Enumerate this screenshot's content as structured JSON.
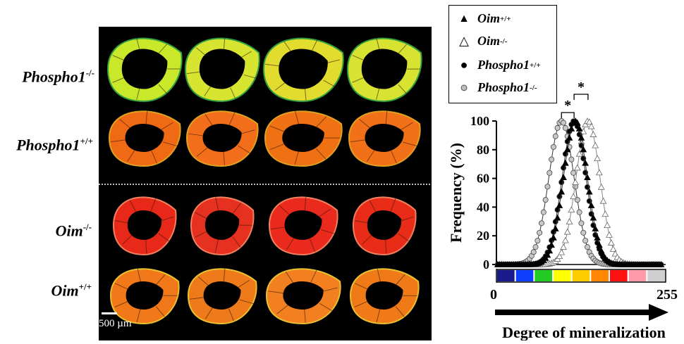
{
  "panel": {
    "row_labels": [
      {
        "base": "Phospho1",
        "sup": "-/-"
      },
      {
        "base": "Phospho1",
        "sup": "+/+"
      },
      {
        "base": "Oim",
        "sup": "-/-"
      },
      {
        "base": "Oim",
        "sup": "+/+"
      }
    ],
    "scale_label": "500 µm"
  },
  "legend": [
    {
      "base": "Oim",
      "sup": "+/+",
      "symbol": "▲",
      "icon": "filled-triangle-icon"
    },
    {
      "base": "Oim",
      "sup": "-/-",
      "symbol": "△",
      "icon": "open-triangle-icon"
    },
    {
      "base": "Phospho1",
      "sup": "+/+",
      "symbol": "●",
      "icon": "filled-circle-icon"
    },
    {
      "base": "Phospho1",
      "sup": "-/-",
      "symbol": "●",
      "icon": "grey-circle-icon"
    }
  ],
  "chart_data": {
    "type": "line",
    "ylabel": "Frequency (%)",
    "xlabel": "Degree of mineralization",
    "xlim": [
      0,
      255
    ],
    "ylim": [
      0,
      100
    ],
    "yticks": [
      0,
      20,
      40,
      60,
      80,
      100
    ],
    "xtick_labels": [
      "0",
      "255"
    ],
    "significance": [
      "*",
      "*"
    ],
    "color_scale": [
      "#1a1a8c",
      "#1040ff",
      "#22cc22",
      "#ffff00",
      "#ffcc00",
      "#ff8800",
      "#ff1010",
      "#ff9aa8",
      "#cfcfcf"
    ],
    "series": [
      {
        "name": "Phospho1-/-",
        "center": 98,
        "width": 19,
        "marker": "circle",
        "fill": "#c8c8c8"
      },
      {
        "name": "Phospho1+/+",
        "center": 117,
        "width": 18,
        "marker": "circle",
        "fill": "#000000"
      },
      {
        "name": "Oim+/+",
        "center": 119,
        "width": 18,
        "marker": "triangle",
        "fill": "#000000"
      },
      {
        "name": "Oim-/-",
        "center": 138,
        "width": 18,
        "marker": "triangle",
        "fill": "#ffffff"
      }
    ]
  },
  "bone_panel": {
    "rows": [
      {
        "colors": [
          "#c9e82a",
          "#d8e530",
          "#e2dc2e",
          "#d8e230"
        ],
        "edge": "#30a040"
      },
      {
        "colors": [
          "#f06a16",
          "#f36e1a",
          "#f07014",
          "#f27018"
        ],
        "edge": "#e0a020"
      },
      {
        "colors": [
          "#e82818",
          "#e63020",
          "#ea2a1c",
          "#e82c18"
        ],
        "edge": "#f08060"
      },
      {
        "colors": [
          "#f07818",
          "#ee7a1a",
          "#f28020",
          "#f07a18"
        ],
        "edge": "#e8c030"
      }
    ]
  }
}
